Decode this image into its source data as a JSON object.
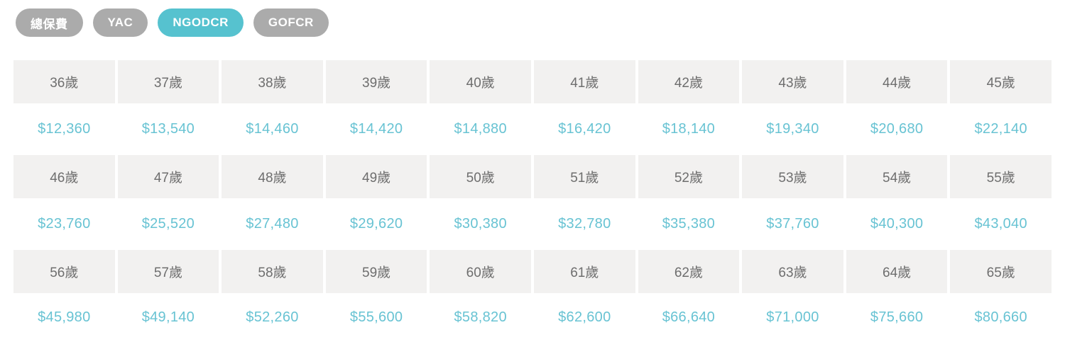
{
  "filter_pills": {
    "items": [
      {
        "id": "total-premium",
        "label": "總保費",
        "active": false
      },
      {
        "id": "yac",
        "label": "YAC",
        "active": false
      },
      {
        "id": "ngodcr",
        "label": "NGODCR",
        "active": true
      },
      {
        "id": "gofcr",
        "label": "GOFCR",
        "active": false
      }
    ]
  },
  "premium_table": {
    "row_pairs": [
      {
        "ages": [
          "36歲",
          "37歲",
          "38歲",
          "39歲",
          "40歲",
          "41歲",
          "42歲",
          "43歲",
          "44歲",
          "45歲"
        ],
        "prices": [
          "$12,360",
          "$13,540",
          "$14,460",
          "$14,420",
          "$14,880",
          "$16,420",
          "$18,140",
          "$19,340",
          "$20,680",
          "$22,140"
        ]
      },
      {
        "ages": [
          "46歲",
          "47歲",
          "48歲",
          "49歲",
          "50歲",
          "51歲",
          "52歲",
          "53歲",
          "54歲",
          "55歲"
        ],
        "prices": [
          "$23,760",
          "$25,520",
          "$27,480",
          "$29,620",
          "$30,380",
          "$32,780",
          "$35,380",
          "$37,760",
          "$40,300",
          "$43,040"
        ]
      },
      {
        "ages": [
          "56歲",
          "57歲",
          "58歲",
          "59歲",
          "60歲",
          "61歲",
          "62歲",
          "63歲",
          "64歲",
          "65歲"
        ],
        "prices": [
          "$45,980",
          "$49,140",
          "$52,260",
          "$55,600",
          "$58,820",
          "$62,600",
          "$66,640",
          "$71,000",
          "$75,660",
          "$80,660"
        ]
      }
    ]
  },
  "colors": {
    "active_pill": "#56c2cf",
    "inactive_pill": "#ababab",
    "age_cell_bg": "#f2f1f0",
    "age_text": "#6e6e6e",
    "price_text": "#68c3d3"
  }
}
